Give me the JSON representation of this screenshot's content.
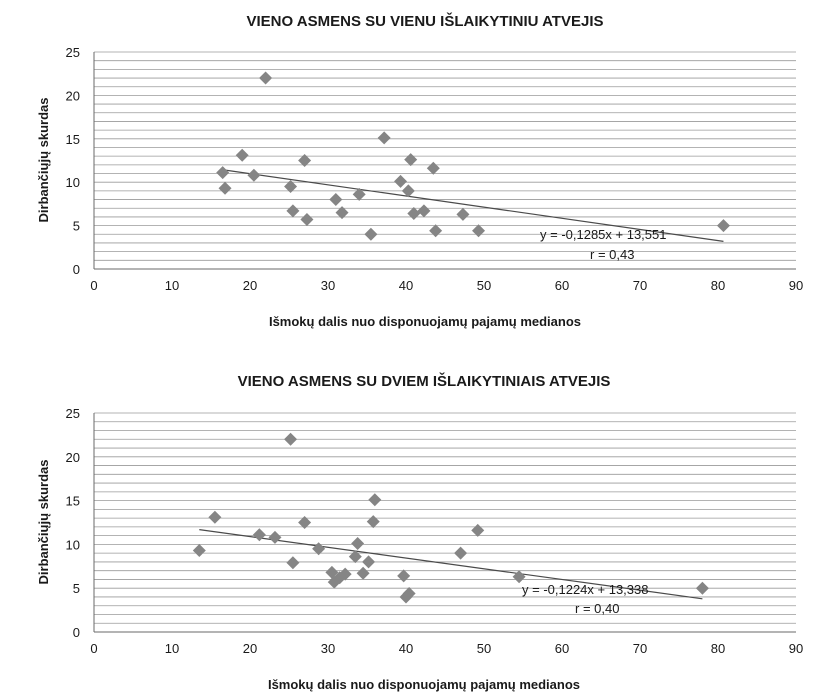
{
  "chart_data": [
    {
      "type": "scatter",
      "title": "VIENO ASMENS SU VIENU IŠLAIKYTINIU ATVEJIS",
      "xlabel": "Išmokų dalis nuo disponuojamų pajamų medianos",
      "ylabel": "Dirbančiųjų skurdas",
      "xlim": [
        0,
        90
      ],
      "ylim": [
        0,
        25
      ],
      "xticks": [
        "0",
        "10",
        "20",
        "30",
        "40",
        "50",
        "60",
        "70",
        "80",
        "90"
      ],
      "yticks": [
        "0",
        "5",
        "10",
        "15",
        "20",
        "25"
      ],
      "grid": "horizontal",
      "points": [
        {
          "x": 16.5,
          "y": 11.1
        },
        {
          "x": 16.8,
          "y": 9.3
        },
        {
          "x": 19,
          "y": 13.1
        },
        {
          "x": 20.5,
          "y": 10.8
        },
        {
          "x": 22,
          "y": 22
        },
        {
          "x": 25.2,
          "y": 9.5
        },
        {
          "x": 25.5,
          "y": 6.7
        },
        {
          "x": 27,
          "y": 12.5
        },
        {
          "x": 27.3,
          "y": 5.7
        },
        {
          "x": 31,
          "y": 8
        },
        {
          "x": 31.8,
          "y": 6.5
        },
        {
          "x": 34,
          "y": 8.6
        },
        {
          "x": 35.5,
          "y": 4
        },
        {
          "x": 37.2,
          "y": 15.1
        },
        {
          "x": 39.3,
          "y": 10.1
        },
        {
          "x": 40.3,
          "y": 9
        },
        {
          "x": 40.6,
          "y": 12.6
        },
        {
          "x": 41,
          "y": 6.4
        },
        {
          "x": 42.3,
          "y": 6.7
        },
        {
          "x": 43.5,
          "y": 11.6
        },
        {
          "x": 43.8,
          "y": 4.4
        },
        {
          "x": 47.3,
          "y": 6.3
        },
        {
          "x": 49.3,
          "y": 4.4
        },
        {
          "x": 80.7,
          "y": 5
        }
      ],
      "trendline": {
        "slope": -0.1285,
        "intercept": 13.551,
        "x_range": [
          16.5,
          80.7
        ]
      },
      "equation": "y = -0,1285x + 13,551",
      "r": "r = 0,43"
    },
    {
      "type": "scatter",
      "title": "VIENO ASMENS SU DVIEM IŠLAIKYTINIAIS ATVEJIS",
      "xlabel": "Išmokų  dalis nuo disponuojamų pajamų medianos",
      "ylabel": "Dirbančiųjų skurdas",
      "xlim": [
        0,
        90
      ],
      "ylim": [
        0,
        25
      ],
      "xticks": [
        "0",
        "10",
        "20",
        "30",
        "40",
        "50",
        "60",
        "70",
        "80",
        "90"
      ],
      "yticks": [
        "0",
        "5",
        "10",
        "15",
        "20",
        "25"
      ],
      "grid": "horizontal",
      "points": [
        {
          "x": 13.5,
          "y": 9.3
        },
        {
          "x": 15.5,
          "y": 13.1
        },
        {
          "x": 21.2,
          "y": 11.1
        },
        {
          "x": 23.2,
          "y": 10.8
        },
        {
          "x": 25.2,
          "y": 22
        },
        {
          "x": 25.5,
          "y": 7.9
        },
        {
          "x": 27,
          "y": 12.5
        },
        {
          "x": 28.8,
          "y": 9.5
        },
        {
          "x": 30.5,
          "y": 6.8
        },
        {
          "x": 30.8,
          "y": 5.7
        },
        {
          "x": 31.5,
          "y": 6.2
        },
        {
          "x": 32.2,
          "y": 6.6
        },
        {
          "x": 33.5,
          "y": 8.6
        },
        {
          "x": 33.8,
          "y": 10.1
        },
        {
          "x": 34.5,
          "y": 6.7
        },
        {
          "x": 35.2,
          "y": 8
        },
        {
          "x": 35.8,
          "y": 12.6
        },
        {
          "x": 36,
          "y": 15.1
        },
        {
          "x": 39.7,
          "y": 6.4
        },
        {
          "x": 40,
          "y": 4
        },
        {
          "x": 40.4,
          "y": 4.4
        },
        {
          "x": 47,
          "y": 9
        },
        {
          "x": 49.2,
          "y": 11.6
        },
        {
          "x": 54.5,
          "y": 6.3
        },
        {
          "x": 78,
          "y": 5
        }
      ],
      "trendline": {
        "slope": -0.1224,
        "intercept": 13.338,
        "x_range": [
          13.5,
          78
        ]
      },
      "equation": "y = -0,1224x + 13,338",
      "r": "r = 0,40"
    }
  ]
}
